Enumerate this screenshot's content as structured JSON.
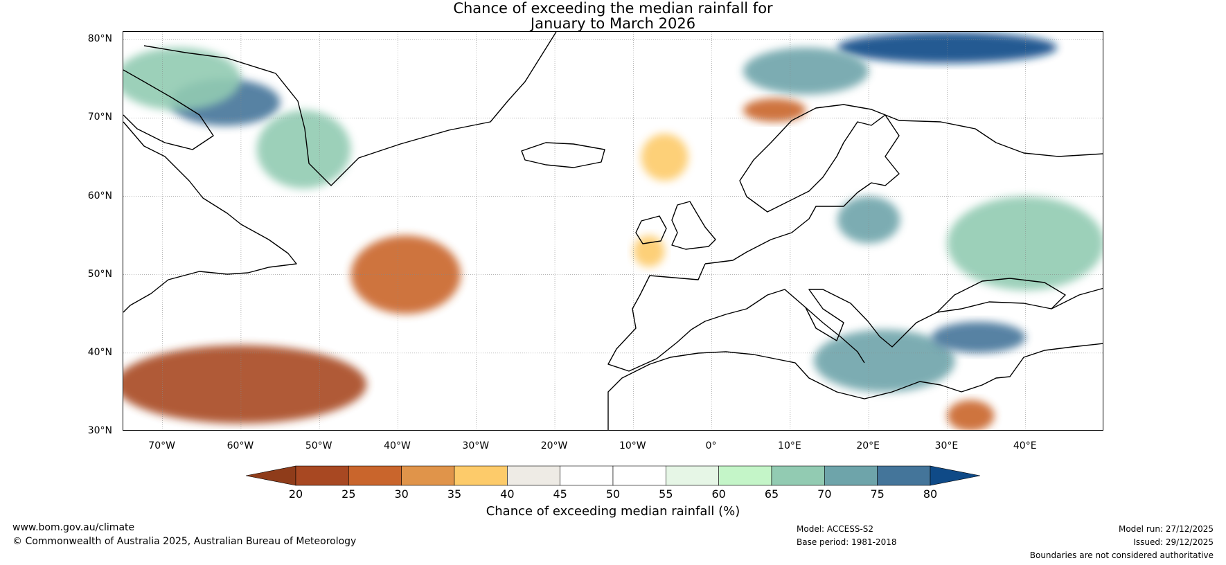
{
  "title": {
    "line1": "Chance of exceeding the median rainfall for",
    "line2": "January to March 2026"
  },
  "axes": {
    "lat_labels": [
      "80°N",
      "70°N",
      "60°N",
      "50°N",
      "40°N",
      "30°N"
    ],
    "lat_values": [
      80,
      70,
      60,
      50,
      40,
      30
    ],
    "lon_labels": [
      "70°W",
      "60°W",
      "50°W",
      "40°W",
      "30°W",
      "20°W",
      "10°W",
      "0°",
      "10°E",
      "20°E",
      "30°E",
      "40°E"
    ],
    "lon_values": [
      -70,
      -60,
      -50,
      -40,
      -30,
      -20,
      -10,
      0,
      10,
      20,
      30,
      40
    ],
    "lon_range": [
      -75,
      50
    ],
    "lat_range": [
      30,
      81
    ]
  },
  "colorbar": {
    "ticks": [
      "20",
      "25",
      "30",
      "35",
      "40",
      "45",
      "50",
      "55",
      "60",
      "65",
      "70",
      "75",
      "80"
    ],
    "low_extend_color": "#8f3c1a",
    "high_extend_color": "#0f4a87",
    "bin_colors": [
      "#a84822",
      "#c9652c",
      "#e0944a",
      "#fdcb6a",
      "#eeebe5",
      "#ffffff",
      "#ffffff",
      "#e6f6e6",
      "#c4f5c8",
      "#92cbb2",
      "#6ea4aa",
      "#44759a"
    ],
    "label": "Chance of exceeding median rainfall (%)"
  },
  "footer": {
    "website": "www.bom.gov.au/climate",
    "copyright": "© Commonwealth of Australia 2025, Australian Bureau of Meteorology",
    "model": "Model: ACCESS-S2",
    "base_period": "Base period: 1981-2018",
    "model_run": "Model run: 27/12/2025",
    "issued": "Issued: 29/12/2025",
    "disclaimer": "Boundaries are not considered authoritative"
  },
  "map_data": {
    "anomaly_regions": [
      {
        "name": "labrador-sea-wet",
        "lon": -62,
        "lat": 72,
        "rlon": 7,
        "rlat": 3,
        "value": 78
      },
      {
        "name": "canadian-arctic-wet",
        "lon": -68,
        "lat": 75,
        "rlon": 8,
        "rlat": 4,
        "value": 68
      },
      {
        "name": "greenland-west-wet",
        "lon": -52,
        "lat": 66,
        "rlon": 6,
        "rlat": 5,
        "value": 66
      },
      {
        "name": "svalbard-wet",
        "lon": 30,
        "lat": 79,
        "rlon": 14,
        "rlat": 2,
        "value": 82
      },
      {
        "name": "barents-wet",
        "lon": 12,
        "lat": 76,
        "rlon": 8,
        "rlat": 3,
        "value": 72
      },
      {
        "name": "mid-atlantic-dry",
        "lon": -39,
        "lat": 50,
        "rlon": 7,
        "rlat": 5,
        "value": 28
      },
      {
        "name": "subtropical-atlantic-dry",
        "lon": -60,
        "lat": 36,
        "rlon": 16,
        "rlat": 5,
        "value": 24
      },
      {
        "name": "mediterranean-wet",
        "lon": 22,
        "lat": 39,
        "rlon": 9,
        "rlat": 4,
        "value": 74
      },
      {
        "name": "black-sea-wet",
        "lon": 34,
        "lat": 42,
        "rlon": 6,
        "rlat": 2,
        "value": 76
      },
      {
        "name": "russia-wet",
        "lon": 40,
        "lat": 54,
        "rlon": 10,
        "rlat": 6,
        "value": 66
      },
      {
        "name": "baltic-wet",
        "lon": 20,
        "lat": 57,
        "rlon": 4,
        "rlat": 3,
        "value": 70
      },
      {
        "name": "norwegian-sea-dry",
        "lon": 8,
        "lat": 71,
        "rlon": 4,
        "rlat": 1.5,
        "value": 28
      },
      {
        "name": "iceland-south-dry",
        "lon": -6,
        "lat": 65,
        "rlon": 3,
        "rlat": 3,
        "value": 35
      },
      {
        "name": "ireland-dry",
        "lon": -8,
        "lat": 53,
        "rlon": 2,
        "rlat": 2,
        "value": 36
      },
      {
        "name": "cyprus-dry",
        "lon": 33,
        "lat": 32,
        "rlon": 3,
        "rlat": 2,
        "value": 27
      }
    ]
  }
}
